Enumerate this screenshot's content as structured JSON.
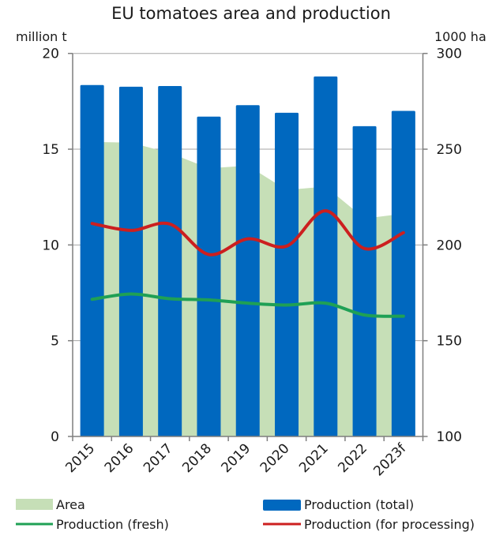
{
  "chart_data": {
    "type": "bar",
    "title": "EU tomatoes area and production",
    "xlabel": "",
    "ylabel": "million t",
    "ylabel_right": "1000 ha",
    "ylim": [
      0,
      20
    ],
    "ylim_right": [
      100,
      300
    ],
    "yticks": [
      "0",
      "5",
      "10",
      "15",
      "20"
    ],
    "yticks_right": [
      "100",
      "150",
      "200",
      "250",
      "300"
    ],
    "ytick_values": [
      0,
      5,
      10,
      15,
      20
    ],
    "ytick_values_right": [
      100,
      150,
      200,
      250,
      300
    ],
    "grid": true,
    "legend_position": "bottom",
    "categories": [
      "2015",
      "2016",
      "2017",
      "2018",
      "2019",
      "2020",
      "2021",
      "2022",
      "2023f"
    ],
    "series": [
      {
        "name": "Area",
        "type": "area",
        "axis": "right",
        "color": "#c6dfb7",
        "values": [
          253.8,
          253.4,
          248.0,
          240.0,
          241.4,
          228.7,
          230.5,
          213.8,
          216.3
        ]
      },
      {
        "name": "Production (total)",
        "type": "bar",
        "axis": "left",
        "color": "#0068bf",
        "values": [
          18.35,
          18.26,
          18.3,
          16.7,
          17.3,
          16.9,
          18.8,
          16.2,
          17.0
        ]
      },
      {
        "name": "Production (fresh)",
        "type": "line",
        "axis": "left",
        "color": "#1fa055",
        "values": [
          7.16,
          7.44,
          7.19,
          7.13,
          6.96,
          6.86,
          6.96,
          6.34,
          6.28
        ]
      },
      {
        "name": "Production (for processing)",
        "type": "line",
        "axis": "left",
        "color": "#cc1f1f",
        "values": [
          11.12,
          10.76,
          11.09,
          9.5,
          10.32,
          9.94,
          11.78,
          9.81,
          10.64
        ]
      }
    ]
  }
}
